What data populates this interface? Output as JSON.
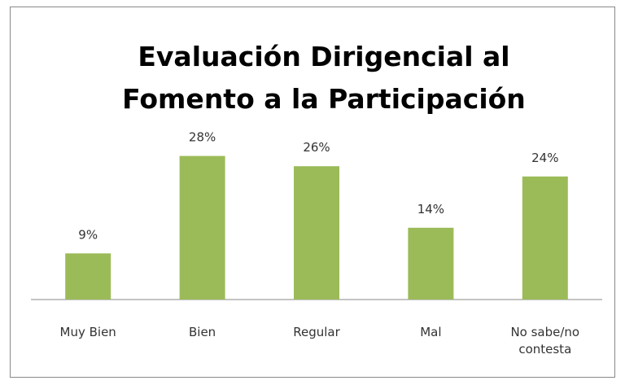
{
  "chart_data": {
    "type": "bar",
    "title": "Evaluación Dirigencial al Fomento a la Participación",
    "categories": [
      "Muy Bien",
      "Bien",
      "Regular",
      "Mal",
      "No sabe/no contesta"
    ],
    "values": [
      9,
      28,
      26,
      14,
      24
    ],
    "value_labels": [
      "9%",
      "28%",
      "26%",
      "14%",
      "24%"
    ],
    "color": "#9bbb59"
  }
}
